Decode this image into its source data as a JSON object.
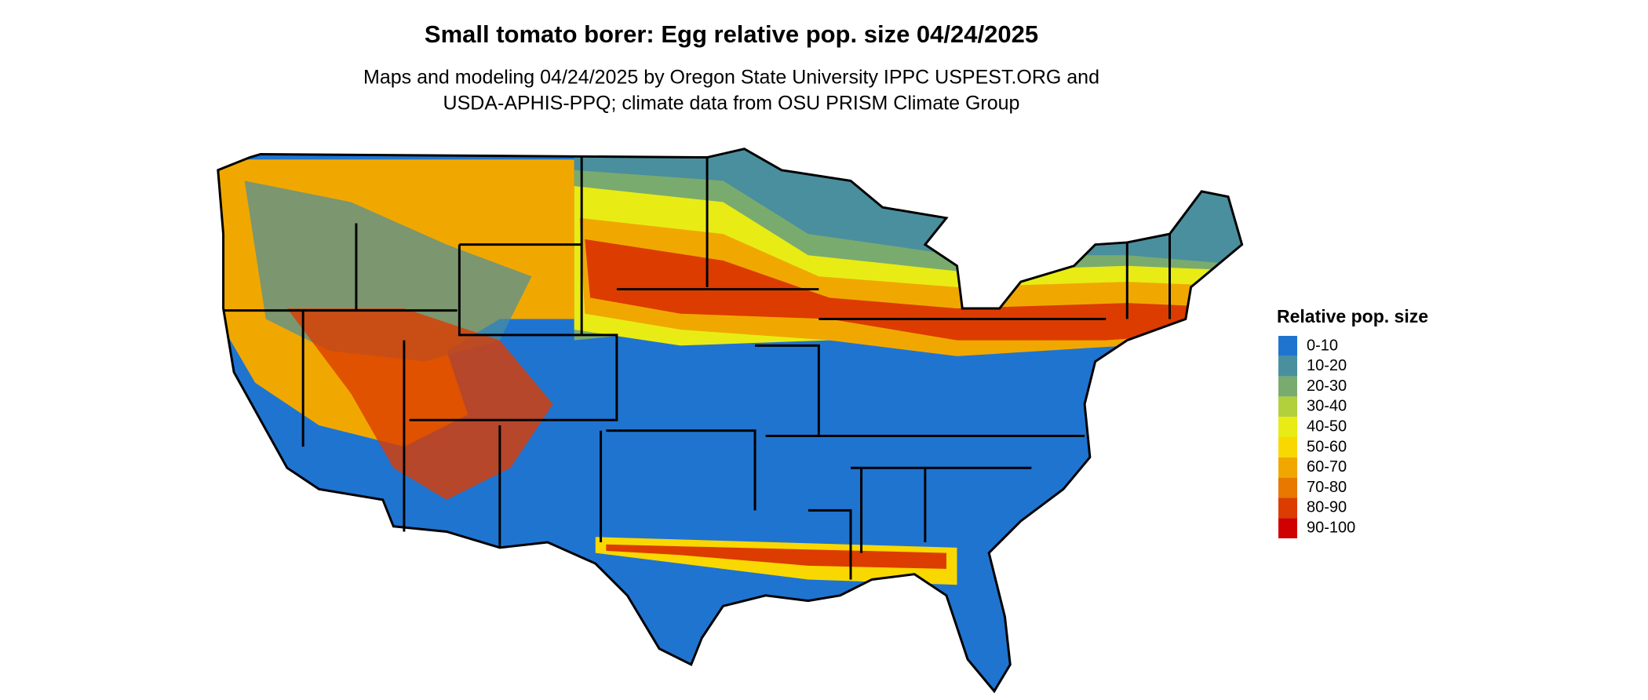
{
  "title": "Small tomato borer: Egg relative pop. size 04/24/2025",
  "subtitle": [
    "Maps and modeling 04/24/2025 by Oregon State University IPPC USPEST.ORG and",
    "USDA-APHIS-PPQ; climate data from OSU PRISM Climate Group"
  ],
  "legend": {
    "title": "Relative pop. size",
    "items": [
      {
        "label": "0-10",
        "color": "#1f74d0"
      },
      {
        "label": "10-20",
        "color": "#4a8f9e"
      },
      {
        "label": "20-30",
        "color": "#7aab6e"
      },
      {
        "label": "30-40",
        "color": "#b1d03c"
      },
      {
        "label": "40-50",
        "color": "#e8ec14"
      },
      {
        "label": "50-60",
        "color": "#f8d800"
      },
      {
        "label": "60-70",
        "color": "#f0a800"
      },
      {
        "label": "70-80",
        "color": "#e87800"
      },
      {
        "label": "80-90",
        "color": "#dc3c00"
      },
      {
        "label": "90-100",
        "color": "#d00000"
      }
    ]
  }
}
